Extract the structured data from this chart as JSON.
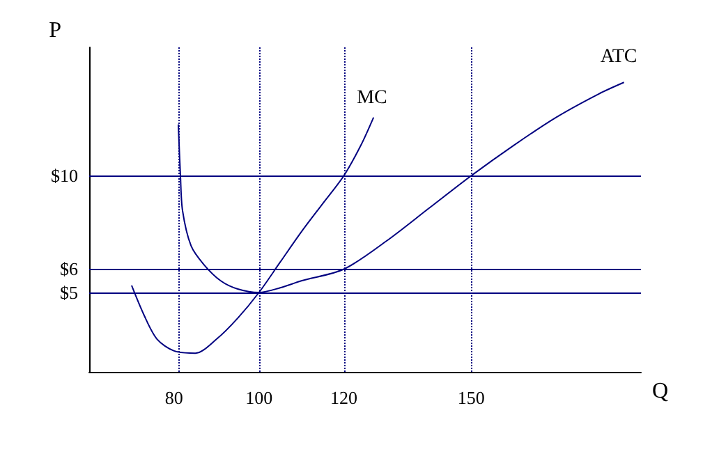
{
  "chart_data": {
    "type": "line",
    "xlabel": "Q",
    "ylabel": "P",
    "series": [
      {
        "name": "MC",
        "color": "#000080",
        "x": [
          70,
          73,
          76,
          80,
          85,
          90,
          95,
          100,
          105,
          110,
          115,
          120,
          124,
          127
        ],
        "values": [
          5.3,
          4,
          3,
          2.5,
          2.4,
          3,
          3.9,
          5,
          6.3,
          7.6,
          8.8,
          10,
          11.3,
          12.5
        ]
      },
      {
        "name": "ATC",
        "color": "#000080",
        "x": [
          81,
          81.5,
          82,
          84,
          87,
          91,
          95,
          100,
          105,
          110,
          120,
          130,
          140,
          150,
          160,
          170,
          180,
          186
        ],
        "values": [
          12.2,
          10,
          8.5,
          7,
          6.2,
          5.5,
          5.15,
          5,
          5.2,
          5.5,
          6,
          7.2,
          8.6,
          10,
          11.3,
          12.5,
          13.5,
          14
        ]
      }
    ],
    "xlim": [
      60,
      190
    ],
    "xticks": [
      80,
      100,
      120,
      150
    ],
    "ylim": [
      1.6,
      15.5
    ],
    "yticks": [
      {
        "value": 5,
        "label": "$5"
      },
      {
        "value": 6,
        "label": "$6"
      },
      {
        "value": 10,
        "label": "$10"
      }
    ],
    "ref_lines": [
      {
        "axis": "y",
        "value": 10,
        "color": "#000080",
        "line_style": "solid"
      },
      {
        "axis": "y",
        "value": 6,
        "color": "#000080",
        "line_style": "solid"
      },
      {
        "axis": "y",
        "value": 5,
        "color": "#000080",
        "line_style": "solid"
      },
      {
        "axis": "x",
        "value": 81,
        "color": "#000080",
        "line_style": "dotted"
      },
      {
        "axis": "x",
        "value": 100,
        "color": "#000080",
        "line_style": "dotted"
      },
      {
        "axis": "x",
        "value": 120,
        "color": "#000080",
        "line_style": "dotted"
      },
      {
        "axis": "x",
        "value": 150,
        "color": "#000080",
        "line_style": "dotted"
      }
    ],
    "grid": false,
    "legend": false,
    "marker": "none",
    "line_style": "solid"
  }
}
